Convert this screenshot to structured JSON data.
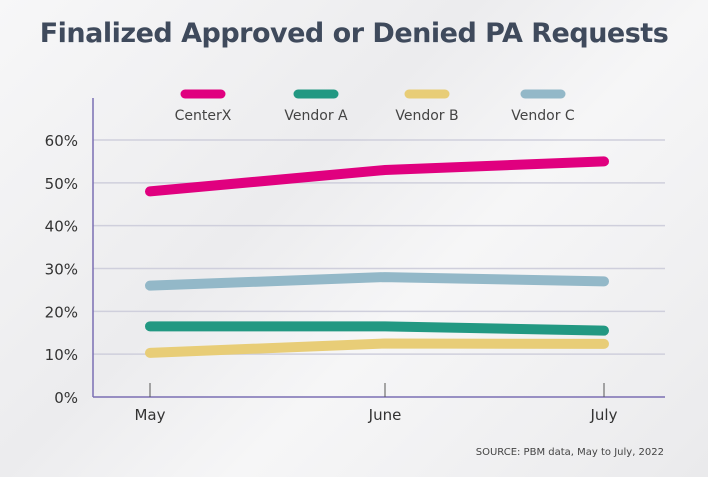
{
  "title": "Finalized Approved or Denied PA Requests",
  "source": "SOURCE: PBM data, May to July, 2022",
  "chart_data": {
    "type": "line",
    "title": "Finalized Approved or Denied PA Requests",
    "categories": [
      "May",
      "June",
      "July"
    ],
    "ylim": [
      0,
      60
    ],
    "yticks": [
      "0%",
      "10%",
      "20%",
      "30%",
      "40%",
      "50%",
      "60%"
    ],
    "grid": true,
    "legend_placement": "top",
    "series": [
      {
        "name": "CenterX",
        "color": "#e0007f",
        "values": [
          48,
          53,
          55
        ]
      },
      {
        "name": "Vendor A",
        "color": "#229882",
        "values": [
          16.5,
          16.5,
          15.5
        ]
      },
      {
        "name": "Vendor B",
        "color": "#e8cd77",
        "values": [
          10.3,
          12.5,
          12.4
        ]
      },
      {
        "name": "Vendor C",
        "color": "#93b8c8",
        "values": [
          26,
          28,
          27
        ]
      }
    ]
  }
}
